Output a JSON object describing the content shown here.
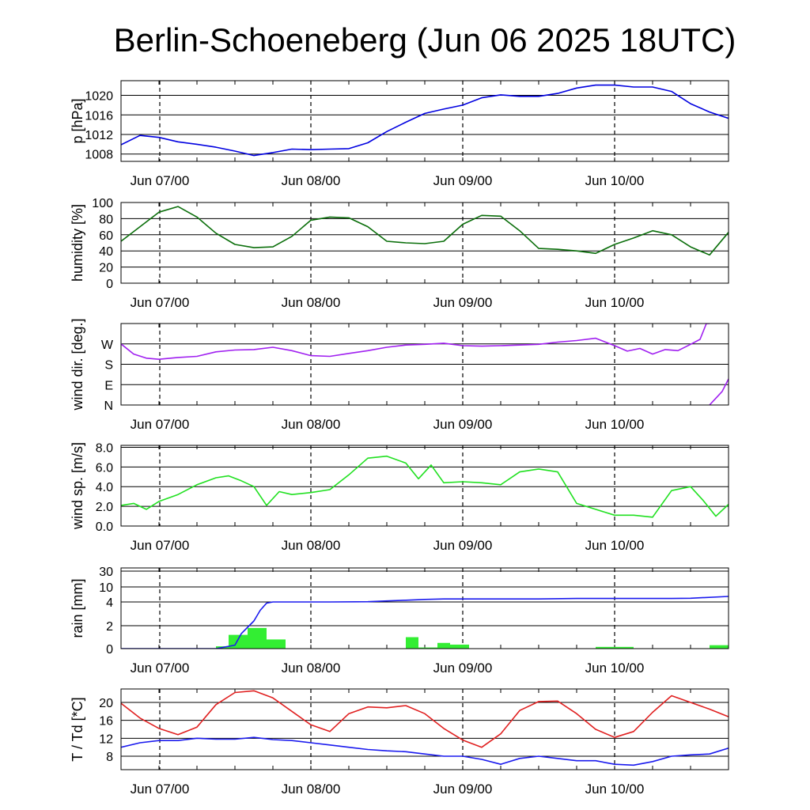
{
  "title": "Berlin-Schoeneberg (Jun 06 2025 18UTC)",
  "x_ticks": [
    "Jun 07/00",
    "Jun 08/00",
    "Jun 09/00",
    "Jun 10/00"
  ],
  "x_range_hours_from_start": [
    0,
    96
  ],
  "chart_data": [
    {
      "type": "line",
      "ylabel": "p [hPa]",
      "ylim": [
        1006.5,
        1023
      ],
      "ytick_values": [
        1008,
        1012,
        1016,
        1020
      ],
      "ytick_labels": [
        "1008",
        "1012",
        "1016",
        "1020"
      ],
      "grid": true,
      "series": [
        {
          "color": "#0000e0",
          "x": [
            "Jun 06 18:00",
            "Jun 06 21:00",
            "Jun 07 00:00",
            "Jun 07 03:00",
            "Jun 07 06:00",
            "Jun 07 09:00",
            "Jun 07 12:00",
            "Jun 07 15:00",
            "Jun 07 18:00",
            "Jun 07 21:00",
            "Jun 08 00:00",
            "Jun 08 03:00",
            "Jun 08 06:00",
            "Jun 08 09:00",
            "Jun 08 12:00",
            "Jun 08 15:00",
            "Jun 08 18:00",
            "Jun 08 21:00",
            "Jun 09 00:00",
            "Jun 09 03:00",
            "Jun 09 06:00",
            "Jun 09 09:00",
            "Jun 09 12:00",
            "Jun 09 15:00",
            "Jun 09 18:00",
            "Jun 09 21:00",
            "Jun 10 00:00",
            "Jun 10 03:00",
            "Jun 10 06:00",
            "Jun 10 09:00",
            "Jun 10 12:00",
            "Jun 10 15:00",
            "Jun 10 18:00"
          ],
          "y": [
            1009.9,
            1011.8,
            1011.4,
            1010.5,
            1010.0,
            1009.4,
            1008.6,
            1007.7,
            1008.3,
            1009.0,
            1008.9,
            1009.0,
            1009.1,
            1010.3,
            1012.6,
            1014.5,
            1016.3,
            1017.2,
            1018.0,
            1019.5,
            1020.1,
            1019.8,
            1019.8,
            1020.4,
            1021.5,
            1022.1,
            1022.1,
            1021.7,
            1021.7,
            1020.8,
            1018.3,
            1016.6,
            1015.3
          ]
        }
      ]
    },
    {
      "type": "line",
      "ylabel": "humidity [%]",
      "ylim": [
        0,
        100
      ],
      "ytick_values": [
        0,
        20,
        40,
        60,
        80,
        100
      ],
      "ytick_labels": [
        "0",
        "20",
        "40",
        "60",
        "80",
        "100"
      ],
      "grid": true,
      "series": [
        {
          "color": "#0a6e0a",
          "x": [
            "Jun 06 18:00",
            "Jun 06 21:00",
            "Jun 07 00:00",
            "Jun 07 03:00",
            "Jun 07 06:00",
            "Jun 07 09:00",
            "Jun 07 12:00",
            "Jun 07 15:00",
            "Jun 07 18:00",
            "Jun 07 21:00",
            "Jun 08 00:00",
            "Jun 08 03:00",
            "Jun 08 06:00",
            "Jun 08 09:00",
            "Jun 08 12:00",
            "Jun 08 15:00",
            "Jun 08 18:00",
            "Jun 08 21:00",
            "Jun 09 00:00",
            "Jun 09 03:00",
            "Jun 09 06:00",
            "Jun 09 09:00",
            "Jun 09 12:00",
            "Jun 09 15:00",
            "Jun 09 18:00",
            "Jun 09 21:00",
            "Jun 10 00:00",
            "Jun 10 03:00",
            "Jun 10 06:00",
            "Jun 10 09:00",
            "Jun 10 12:00",
            "Jun 10 15:00",
            "Jun 10 18:00"
          ],
          "y": [
            52,
            70,
            88,
            95,
            82,
            62,
            48,
            44,
            45,
            58,
            78,
            82,
            81,
            70,
            52,
            50,
            49,
            52,
            73,
            84,
            83,
            65,
            43,
            42,
            40,
            37,
            48,
            56,
            65,
            60,
            45,
            35,
            63
          ]
        }
      ]
    },
    {
      "type": "line",
      "ylabel": "wind dir. [deg.]",
      "ylim": [
        0,
        360
      ],
      "ytick_values": [
        0,
        90,
        180,
        270
      ],
      "ytick_labels": [
        "N",
        "E",
        "S",
        "W"
      ],
      "grid": true,
      "series": [
        {
          "color": "#a020f0",
          "x": [
            "Jun 06 18:00",
            "Jun 06 20:00",
            "Jun 06 22:00",
            "Jun 07 00:00",
            "Jun 07 03:00",
            "Jun 07 06:00",
            "Jun 07 09:00",
            "Jun 07 12:00",
            "Jun 07 15:00",
            "Jun 07 18:00",
            "Jun 07 21:00",
            "Jun 08 00:00",
            "Jun 08 03:00",
            "Jun 08 06:00",
            "Jun 08 09:00",
            "Jun 08 12:00",
            "Jun 08 15:00",
            "Jun 08 18:00",
            "Jun 08 21:00",
            "Jun 09 00:00",
            "Jun 09 03:00",
            "Jun 09 06:00",
            "Jun 09 09:00",
            "Jun 09 12:00",
            "Jun 09 15:00",
            "Jun 09 18:00",
            "Jun 09 21:00",
            "Jun 10 00:00",
            "Jun 10 02:00",
            "Jun 10 04:00",
            "Jun 10 06:00",
            "Jun 10 08:00",
            "Jun 10 10:00",
            "Jun 10 12:00",
            "Jun 10 13:30",
            "Jun 10 14:30",
            "Jun 10 15:00"
          ],
          "y": [
            270,
            225,
            207,
            202,
            210,
            215,
            235,
            243,
            245,
            255,
            240,
            218,
            215,
            228,
            240,
            255,
            265,
            268,
            273,
            262,
            260,
            262,
            265,
            268,
            278,
            285,
            295,
            262,
            238,
            250,
            225,
            245,
            240,
            268,
            290,
            360,
            360
          ]
        },
        {
          "color": "#a020f0",
          "x": [
            "Jun 10 15:00",
            "Jun 10 16:00",
            "Jun 10 17:00",
            "Jun 10 18:00"
          ],
          "y": [
            0,
            30,
            60,
            115
          ]
        }
      ]
    },
    {
      "type": "line",
      "ylabel": "wind sp. [m/s]",
      "ylim": [
        0,
        8.2
      ],
      "ytick_values": [
        0,
        2,
        4,
        6,
        8
      ],
      "ytick_labels": [
        "0.0",
        "2.0",
        "4.0",
        "6.0",
        "8.0"
      ],
      "grid": true,
      "series": [
        {
          "color": "#20e020",
          "x": [
            "Jun 06 18:00",
            "Jun 06 20:00",
            "Jun 06 22:00",
            "Jun 07 00:00",
            "Jun 07 03:00",
            "Jun 07 06:00",
            "Jun 07 09:00",
            "Jun 07 11:00",
            "Jun 07 13:00",
            "Jun 07 15:00",
            "Jun 07 17:00",
            "Jun 07 19:00",
            "Jun 07 21:00",
            "Jun 08 00:00",
            "Jun 08 03:00",
            "Jun 08 06:00",
            "Jun 08 09:00",
            "Jun 08 12:00",
            "Jun 08 15:00",
            "Jun 08 17:00",
            "Jun 08 19:00",
            "Jun 08 21:00",
            "Jun 09 00:00",
            "Jun 09 03:00",
            "Jun 09 06:00",
            "Jun 09 09:00",
            "Jun 09 12:00",
            "Jun 09 15:00",
            "Jun 09 18:00",
            "Jun 09 21:00",
            "Jun 10 00:00",
            "Jun 10 03:00",
            "Jun 10 06:00",
            "Jun 10 09:00",
            "Jun 10 12:00",
            "Jun 10 14:00",
            "Jun 10 16:00",
            "Jun 10 18:00"
          ],
          "y": [
            2.1,
            2.3,
            1.7,
            2.5,
            3.2,
            4.2,
            4.9,
            5.1,
            4.6,
            4.0,
            2.1,
            3.5,
            3.2,
            3.4,
            3.7,
            5.2,
            6.9,
            7.1,
            6.4,
            4.8,
            6.2,
            4.4,
            4.5,
            4.4,
            4.2,
            5.5,
            5.8,
            5.5,
            2.3,
            1.7,
            1.1,
            1.1,
            0.9,
            3.6,
            4.0,
            2.6,
            1.0,
            2.2
          ]
        }
      ]
    },
    {
      "type": "bar",
      "ylabel": "rain [mm]",
      "ylim": [
        0,
        30
      ],
      "scale": "piecewise: 0-2 and 2-4 linear, 4-10 and 10-30 compressed",
      "ytick_values": [
        0,
        2,
        4,
        10,
        30
      ],
      "ytick_labels": [
        "0",
        "2",
        "4",
        "10",
        "30"
      ],
      "grid": true,
      "bars": {
        "color": "#33ee33",
        "start": [
          "Jun 07 09:00",
          "Jun 07 11:00",
          "Jun 07 14:00",
          "Jun 07 17:00",
          "Jun 08 15:00",
          "Jun 08 17:00",
          "Jun 08 20:00",
          "Jun 08 22:00",
          "Jun 09 21:00",
          "Jun 10 15:00"
        ],
        "end": [
          "Jun 07 11:00",
          "Jun 07 14:00",
          "Jun 07 17:00",
          "Jun 07 20:00",
          "Jun 08 17:00",
          "Jun 08 20:00",
          "Jun 08 22:00",
          "Jun 09 01:00",
          "Jun 10 03:00",
          "Jun 10 18:00"
        ],
        "values": [
          0.2,
          1.2,
          1.8,
          0.8,
          1.0,
          0.1,
          0.5,
          0.35,
          0.15,
          0.3
        ]
      },
      "series": [
        {
          "name": "",
          "color": "#1a1aee",
          "x": [
            "Jun 06 18:00",
            "Jun 07 09:00",
            "Jun 07 12:00",
            "Jun 07 13:00",
            "Jun 07 15:00",
            "Jun 07 16:00",
            "Jun 07 17:00",
            "Jun 07 18:00",
            "Jun 08 00:00",
            "Jun 08 03:00",
            "Jun 08 09:00",
            "Jun 08 12:00",
            "Jun 08 15:00",
            "Jun 08 18:00",
            "Jun 08 21:00",
            "Jun 09 12:00",
            "Jun 09 18:00",
            "Jun 10 09:00",
            "Jun 10 12:00",
            "Jun 10 18:00"
          ],
          "y": [
            0,
            0,
            0.3,
            1.3,
            2.4,
            3.3,
            3.9,
            4.0,
            4.0,
            4.0,
            4.1,
            4.4,
            4.7,
            5.0,
            5.2,
            5.2,
            5.4,
            5.4,
            5.5,
            6.2
          ]
        }
      ]
    },
    {
      "type": "line",
      "ylabel": "T / Td [*C]",
      "ylim": [
        5,
        23
      ],
      "ytick_values": [
        8,
        12,
        16,
        20
      ],
      "ytick_labels": [
        "8",
        "12",
        "16",
        "20"
      ],
      "grid": true,
      "series": [
        {
          "color": "#e02020",
          "x": [
            "Jun 06 18:00",
            "Jun 06 21:00",
            "Jun 07 00:00",
            "Jun 07 03:00",
            "Jun 07 06:00",
            "Jun 07 09:00",
            "Jun 07 12:00",
            "Jun 07 15:00",
            "Jun 07 18:00",
            "Jun 07 21:00",
            "Jun 08 00:00",
            "Jun 08 03:00",
            "Jun 08 06:00",
            "Jun 08 09:00",
            "Jun 08 12:00",
            "Jun 08 15:00",
            "Jun 08 18:00",
            "Jun 08 21:00",
            "Jun 09 00:00",
            "Jun 09 03:00",
            "Jun 09 06:00",
            "Jun 09 09:00",
            "Jun 09 12:00",
            "Jun 09 15:00",
            "Jun 09 18:00",
            "Jun 09 21:00",
            "Jun 10 00:00",
            "Jun 10 03:00",
            "Jun 10 06:00",
            "Jun 10 09:00",
            "Jun 10 12:00",
            "Jun 10 15:00",
            "Jun 10 18:00"
          ],
          "y": [
            19.8,
            16.5,
            14.2,
            12.8,
            14.5,
            19.5,
            22.2,
            22.6,
            21.0,
            18.0,
            15.0,
            13.5,
            17.5,
            19.0,
            18.8,
            19.3,
            17.5,
            14.2,
            11.6,
            10.0,
            13.0,
            18.2,
            20.2,
            20.3,
            17.5,
            14.0,
            12.2,
            13.5,
            17.8,
            21.5,
            20.0,
            18.5,
            16.8
          ]
        },
        {
          "color": "#1a1aee",
          "x": [
            "Jun 06 18:00",
            "Jun 06 21:00",
            "Jun 07 00:00",
            "Jun 07 03:00",
            "Jun 07 06:00",
            "Jun 07 09:00",
            "Jun 07 12:00",
            "Jun 07 15:00",
            "Jun 07 18:00",
            "Jun 07 21:00",
            "Jun 08 00:00",
            "Jun 08 03:00",
            "Jun 08 06:00",
            "Jun 08 09:00",
            "Jun 08 12:00",
            "Jun 08 15:00",
            "Jun 08 18:00",
            "Jun 08 21:00",
            "Jun 09 00:00",
            "Jun 09 03:00",
            "Jun 09 06:00",
            "Jun 09 09:00",
            "Jun 09 12:00",
            "Jun 09 15:00",
            "Jun 09 18:00",
            "Jun 09 21:00",
            "Jun 10 00:00",
            "Jun 10 03:00",
            "Jun 10 06:00",
            "Jun 10 09:00",
            "Jun 10 12:00",
            "Jun 10 15:00",
            "Jun 10 18:00"
          ],
          "y": [
            10.0,
            11.0,
            11.5,
            11.5,
            12.0,
            11.8,
            11.8,
            12.2,
            11.7,
            11.5,
            11.0,
            10.5,
            10.0,
            9.5,
            9.2,
            9.0,
            8.5,
            8.0,
            8.0,
            7.3,
            6.2,
            7.5,
            8.0,
            7.5,
            7.0,
            7.0,
            6.2,
            6.0,
            6.8,
            8.0,
            8.3,
            8.5,
            9.8
          ]
        }
      ]
    }
  ]
}
